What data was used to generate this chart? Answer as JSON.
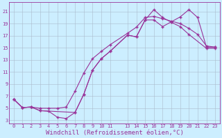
{
  "xlabel": "Windchill (Refroidissement éolien,°C)",
  "bg_color": "#cceeff",
  "grid_color": "#aabbcc",
  "line_color": "#993399",
  "xlim": [
    -0.5,
    23.5
  ],
  "ylim": [
    2.5,
    22.5
  ],
  "xticks": [
    0,
    1,
    2,
    3,
    4,
    5,
    6,
    7,
    8,
    9,
    10,
    11,
    13,
    14,
    15,
    16,
    17,
    18,
    19,
    20,
    21,
    22,
    23
  ],
  "yticks": [
    3,
    5,
    7,
    9,
    11,
    13,
    15,
    17,
    19,
    21
  ],
  "line1_x": [
    0,
    1,
    2,
    3,
    4,
    5,
    6,
    7,
    8,
    9,
    10,
    11,
    13,
    14,
    15,
    16,
    17,
    18,
    19,
    20,
    21,
    22,
    23
  ],
  "line1_y": [
    6.5,
    5.1,
    5.2,
    4.6,
    4.5,
    3.5,
    3.3,
    4.3,
    7.3,
    11.3,
    13.2,
    14.4,
    17.1,
    16.8,
    19.6,
    19.6,
    18.5,
    19.3,
    20.1,
    21.3,
    20.0,
    15.1,
    15.1
  ],
  "line2_x": [
    0,
    1,
    2,
    3,
    4,
    5,
    6,
    7,
    8,
    9,
    10,
    11,
    13,
    14,
    15,
    16,
    17,
    18,
    19,
    20,
    21,
    22,
    23
  ],
  "line2_y": [
    6.5,
    5.1,
    5.2,
    5.0,
    5.0,
    5.0,
    5.2,
    7.8,
    10.8,
    13.2,
    14.4,
    15.5,
    17.4,
    18.4,
    20.0,
    20.2,
    19.8,
    19.4,
    19.0,
    18.2,
    17.2,
    15.3,
    15.1
  ],
  "line3_x": [
    0,
    1,
    2,
    3,
    7,
    8,
    9,
    10,
    11,
    13,
    14,
    15,
    16,
    17,
    18,
    19,
    20,
    22,
    23
  ],
  "line3_y": [
    6.5,
    5.1,
    5.2,
    4.6,
    4.3,
    7.3,
    11.3,
    13.2,
    14.4,
    17.1,
    16.8,
    19.6,
    21.3,
    20.0,
    19.2,
    18.5,
    17.2,
    14.9,
    14.9
  ],
  "marker": "+",
  "markersize": 3,
  "markeredgewidth": 1.0,
  "linewidth": 0.8,
  "tick_fontsize": 5,
  "label_fontsize": 6.5
}
